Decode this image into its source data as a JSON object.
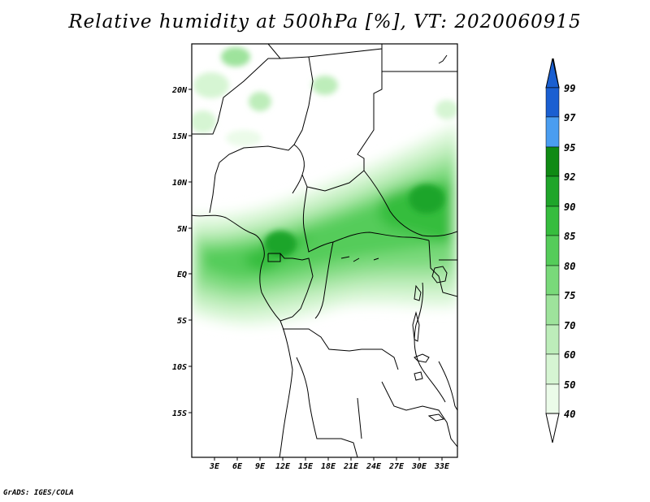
{
  "title": "Relative humidity at 500hPa [%], VT: 2020060915",
  "credit": "GrADS: IGES/COLA",
  "map": {
    "lat_labels": [
      "20N",
      "15N",
      "10N",
      "5N",
      "EQ",
      "5S",
      "10S",
      "15S"
    ],
    "lon_labels": [
      "3E",
      "6E",
      "9E",
      "12E",
      "15E",
      "18E",
      "21E",
      "24E",
      "27E",
      "30E",
      "33E"
    ]
  },
  "colorbar": {
    "labels": [
      "99",
      "97",
      "95",
      "92",
      "90",
      "85",
      "80",
      "75",
      "70",
      "60",
      "50",
      "40"
    ],
    "colors": [
      "#1a5fd1",
      "#2f7fe0",
      "#4a9df0",
      "#0f8a14",
      "#1fa52a",
      "#36bd3e",
      "#55cc5a",
      "#79d97a",
      "#9ee39c",
      "#bdedba",
      "#d6f5d3",
      "#ebfbe9",
      "#ffffff"
    ]
  }
}
